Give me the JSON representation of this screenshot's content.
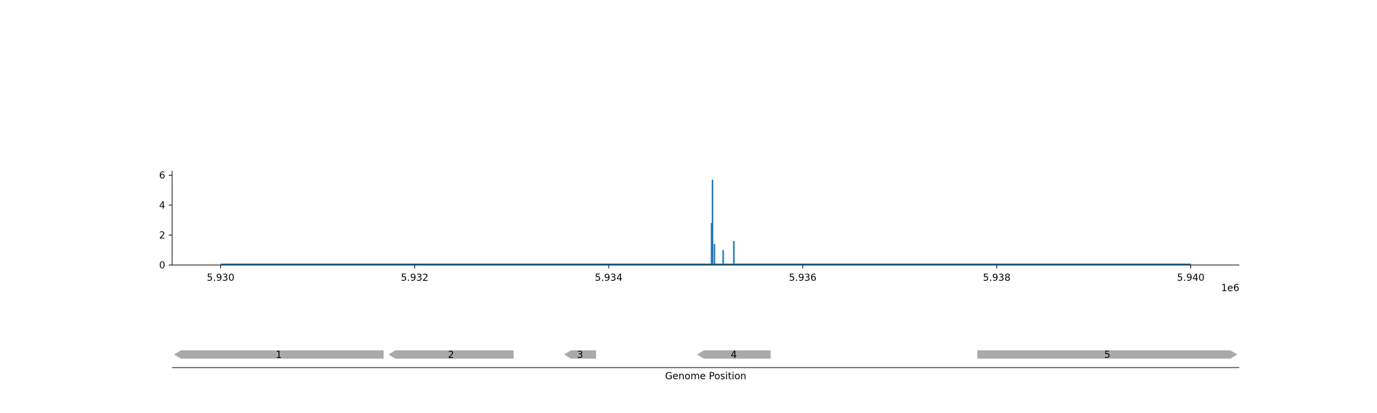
{
  "chart_data": [
    {
      "type": "bar",
      "title": "",
      "xlabel": "",
      "ylabel": "",
      "x_offset_label": "1e6",
      "xlim": [
        5.9295,
        5.9405
      ],
      "ylim": [
        0,
        6.3
      ],
      "x_ticks": [
        {
          "value": 5.93,
          "label": "5.930"
        },
        {
          "value": 5.932,
          "label": "5.932"
        },
        {
          "value": 5.934,
          "label": "5.934"
        },
        {
          "value": 5.936,
          "label": "5.936"
        },
        {
          "value": 5.938,
          "label": "5.938"
        },
        {
          "value": 5.94,
          "label": "5.940"
        }
      ],
      "y_ticks": [
        {
          "value": 0,
          "label": "0"
        },
        {
          "value": 2,
          "label": "2"
        },
        {
          "value": 4,
          "label": "4"
        },
        {
          "value": 6,
          "label": "6"
        }
      ],
      "baseline_range": [
        5.93,
        5.94
      ],
      "series_color": "#1f77b4",
      "bars": [
        {
          "x": 5.93506,
          "y": 2.8
        },
        {
          "x": 5.93507,
          "y": 5.7
        },
        {
          "x": 5.93509,
          "y": 1.4
        },
        {
          "x": 5.93518,
          "y": 1.0
        },
        {
          "x": 5.93529,
          "y": 1.6
        }
      ],
      "grid": false
    },
    {
      "type": "gene-track",
      "xlabel": "Genome Position",
      "xlim": [
        5.9295,
        5.9405
      ],
      "gene_color": "#aaaaaa",
      "genes": [
        {
          "label": "1",
          "start": 5.92952,
          "end": 5.93168,
          "strand": "-"
        },
        {
          "label": "2",
          "start": 5.93173,
          "end": 5.93302,
          "strand": "-"
        },
        {
          "label": "3",
          "start": 5.93354,
          "end": 5.93387,
          "strand": "-"
        },
        {
          "label": "4",
          "start": 5.93491,
          "end": 5.93567,
          "strand": "-"
        },
        {
          "label": "5",
          "start": 5.9378,
          "end": 5.94048,
          "strand": "+"
        }
      ]
    }
  ]
}
